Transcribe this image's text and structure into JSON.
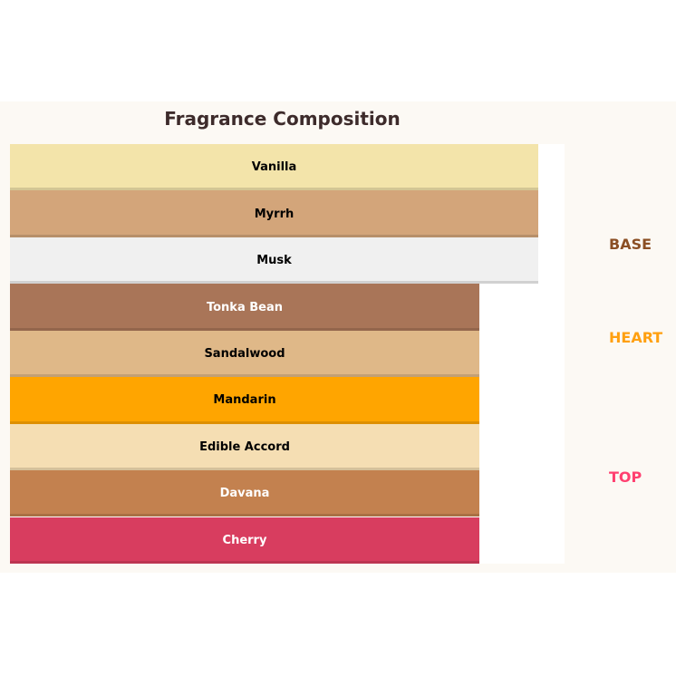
{
  "title": "Fragrance Composition",
  "layers": [
    {
      "name": "Vanilla",
      "tier": "base",
      "color": "#f3e4aa",
      "text_color": "#000000"
    },
    {
      "name": "Myrrh",
      "tier": "base",
      "color": "#d3a57a",
      "text_color": "#000000"
    },
    {
      "name": "Musk",
      "tier": "base",
      "color": "#f0f0f0",
      "text_color": "#000000"
    },
    {
      "name": "Tonka Bean",
      "tier": "heart",
      "color": "#a97558",
      "text_color": "#ffffff"
    },
    {
      "name": "Sandalwood",
      "tier": "heart",
      "color": "#dfb888",
      "text_color": "#000000"
    },
    {
      "name": "Mandarin",
      "tier": "heart",
      "color": "#ffa500",
      "text_color": "#000000"
    },
    {
      "name": "Edible Accord",
      "tier": "top",
      "color": "#f5deb3",
      "text_color": "#000000"
    },
    {
      "name": "Davana",
      "tier": "top",
      "color": "#c3814f",
      "text_color": "#ffffff"
    },
    {
      "name": "Cherry",
      "tier": "top",
      "color": "#d83d5f",
      "text_color": "#ffffff"
    }
  ],
  "tiers": [
    {
      "label": "BASE",
      "color": "#8b4f24"
    },
    {
      "label": "HEART",
      "color": "#ffa010"
    },
    {
      "label": "TOP",
      "color": "#ff4070"
    }
  ]
}
